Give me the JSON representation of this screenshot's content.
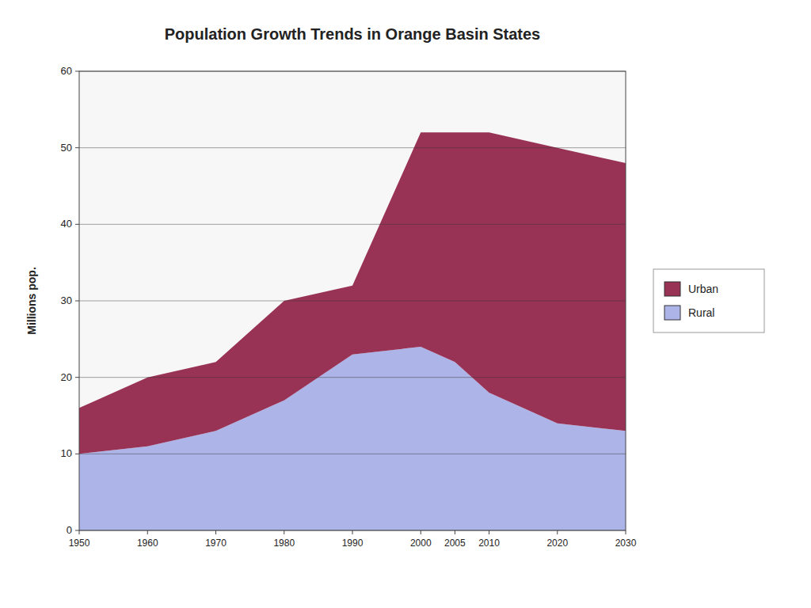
{
  "chart_data": {
    "type": "area",
    "stacked": true,
    "title": "Population Growth Trends in Orange Basin States",
    "y_label": "Millions pop.",
    "x": [
      1950,
      1960,
      1970,
      1980,
      1990,
      2000,
      2005,
      2010,
      2020,
      2030
    ],
    "series": [
      {
        "name": "Rural",
        "color": "#adb4e8",
        "values": [
          10,
          11,
          13,
          17,
          23,
          24,
          22,
          18,
          14,
          13
        ]
      },
      {
        "name": "Urban",
        "color": "#993355",
        "values": [
          6,
          9,
          9,
          13,
          9,
          28,
          30,
          34,
          36,
          35
        ]
      }
    ],
    "xlim": [
      1950,
      2030
    ],
    "xticks": [
      1950,
      1960,
      1970,
      1980,
      1990,
      2000,
      2005,
      2010,
      2020,
      2030
    ],
    "ylim": [
      0,
      60
    ],
    "yticks": [
      0,
      10,
      20,
      30,
      40,
      50,
      60
    ],
    "grid": true,
    "legend": "right"
  }
}
